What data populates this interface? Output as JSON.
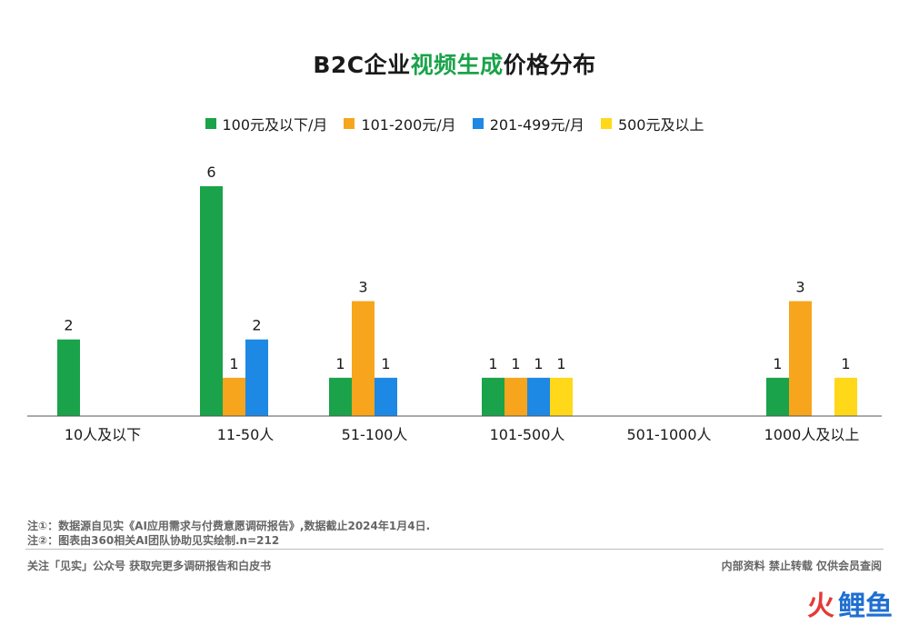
{
  "title": {
    "prefix": "B2C企业",
    "highlight": "视频生成",
    "suffix": "价格分布"
  },
  "colors": {
    "title_highlight": "#1aa34a",
    "axis": "#555555"
  },
  "chart_data": {
    "type": "bar",
    "title": "B2C企业视频生成价格分布",
    "categories": [
      "10人及以下",
      "11-50人",
      "51-100人",
      "101-500人",
      "501-1000人",
      "1000人及以上"
    ],
    "series": [
      {
        "name": "100元及以下/月",
        "color": "#1aa34a",
        "values": [
          2,
          6,
          1,
          1,
          0,
          1
        ]
      },
      {
        "name": "101-200元/月",
        "color": "#f7a51c",
        "values": [
          0,
          1,
          3,
          1,
          0,
          3
        ]
      },
      {
        "name": "201-499元/月",
        "color": "#1e88e5",
        "values": [
          0,
          2,
          1,
          1,
          0,
          0
        ]
      },
      {
        "name": "500元及以上",
        "color": "#ffd81a",
        "values": [
          0,
          0,
          0,
          1,
          0,
          1
        ]
      }
    ],
    "ylim": [
      0,
      6
    ],
    "grid": false,
    "legend_position": "top"
  },
  "notes": [
    "注①：数据源自见实《AI应用需求与付费意愿调研报告》,数据截止2024年1月4日.",
    "注②：图表由360相关AI团队协助见实绘制.n=212"
  ],
  "footer": {
    "left": "关注「见实」公众号 获取完更多调研报告和白皮书",
    "right": "内部资料 禁止转载 仅供会员查阅"
  },
  "watermark": {
    "fire": "火",
    "rest": "鲤鱼"
  }
}
